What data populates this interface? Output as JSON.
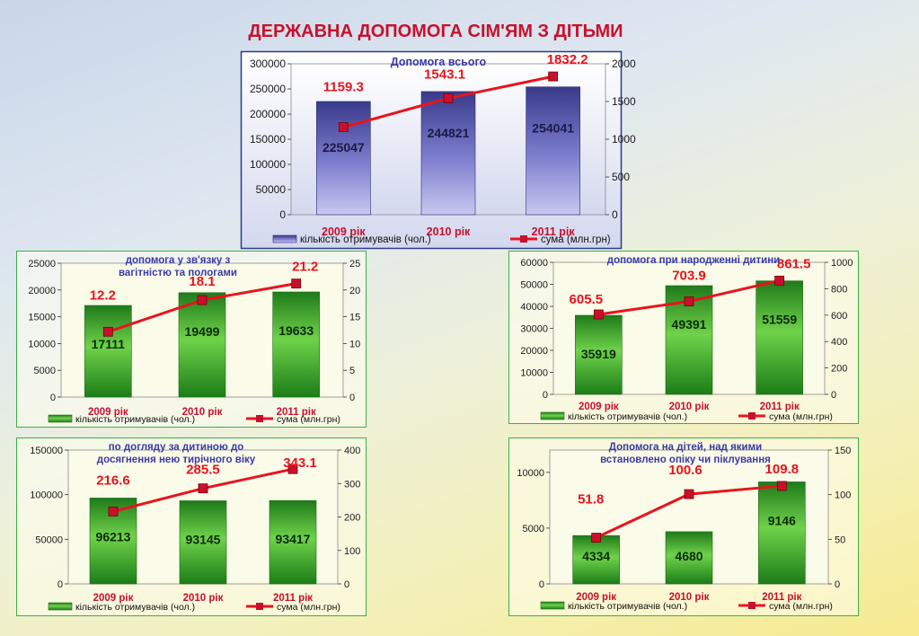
{
  "title": "ДЕРЖАВНА ДОПОМОГА СІМ'ЯМ З ДІТЬМИ",
  "colors": {
    "line": "#e8141e",
    "marker": "#c8102e",
    "value_text": "#e8141e",
    "title_text": "#3a3aa8",
    "green_bar": "#2e9e24",
    "blue_bar": "#4a4aa0",
    "border_green": "#3cb043",
    "border_blue": "#2b3a8c"
  },
  "chart_data": [
    {
      "type": "bar",
      "style": "blue",
      "title": "Допомога всього",
      "categories": [
        "2009 рік",
        "2010 рік",
        "2011 рік"
      ],
      "series": [
        {
          "name": "кількість отримувачів  (чол.)",
          "type": "bar",
          "axis": "left",
          "values": [
            225047,
            244821,
            254041
          ]
        },
        {
          "name": "сума (млн.грн)",
          "type": "line",
          "axis": "right",
          "values": [
            1159.3,
            1543.1,
            1832.2
          ]
        }
      ],
      "ylim_left": [
        0,
        300000
      ],
      "yticks_left": [
        0,
        50000,
        100000,
        150000,
        200000,
        250000,
        300000
      ],
      "ylim_right": [
        0,
        2000
      ],
      "yticks_right": [
        0,
        500,
        1000,
        1500,
        2000
      ],
      "value_labels_bar": [
        "225047",
        "244821",
        "254041"
      ],
      "value_labels_line": [
        "1159.3",
        "1543.1",
        "1832.2"
      ],
      "legend": "bottom"
    },
    {
      "type": "bar",
      "style": "green",
      "title": "допомога  у  зв'язку з вагітністю та пологами",
      "categories": [
        "2009 рік",
        "2010 рік",
        "2011 рік"
      ],
      "series": [
        {
          "name": "кількість отримувачів  (чол.)",
          "type": "bar",
          "axis": "left",
          "values": [
            17111,
            19499,
            19633
          ]
        },
        {
          "name": "сума (млн.грн)",
          "type": "line",
          "axis": "right",
          "values": [
            12.2,
            18.1,
            21.2
          ]
        }
      ],
      "ylim_left": [
        0,
        25000
      ],
      "yticks_left": [
        0,
        5000,
        10000,
        15000,
        20000,
        25000
      ],
      "ylim_right": [
        0,
        25
      ],
      "yticks_right": [
        0,
        5,
        10,
        15,
        20,
        25
      ],
      "value_labels_bar": [
        "17111",
        "19499",
        "19633"
      ],
      "value_labels_line": [
        "12.2",
        "18.1",
        "21.2"
      ],
      "legend": "bottom"
    },
    {
      "type": "bar",
      "style": "green",
      "title": "допомога  при  народженні дитини",
      "categories": [
        "2009 рік",
        "2010 рік",
        "2011 рік"
      ],
      "series": [
        {
          "name": "кількість отримувачів  (чол.)",
          "type": "bar",
          "axis": "left",
          "values": [
            35919,
            49391,
            51559
          ]
        },
        {
          "name": "сума (млн.грн)",
          "type": "line",
          "axis": "right",
          "values": [
            605.5,
            703.9,
            861.5
          ]
        }
      ],
      "ylim_left": [
        0,
        60000
      ],
      "yticks_left": [
        0,
        10000,
        20000,
        30000,
        40000,
        50000,
        60000
      ],
      "ylim_right": [
        0,
        1000
      ],
      "yticks_right": [
        0,
        200,
        400,
        600,
        800,
        1000
      ],
      "value_labels_bar": [
        "35919",
        "49391",
        "51559"
      ],
      "value_labels_line": [
        "605.5",
        "703.9",
        "861.5"
      ],
      "legend": "bottom"
    },
    {
      "type": "bar",
      "style": "green",
      "title": "по догляду  за дитиною до досягнення нею тирічного віку",
      "categories": [
        "2009 рік",
        "2010 рік",
        "2011 рік"
      ],
      "series": [
        {
          "name": "кількість отримувачів  (чол.)",
          "type": "bar",
          "axis": "left",
          "values": [
            96213,
            93145,
            93417
          ]
        },
        {
          "name": "сума (млн.грн)",
          "type": "line",
          "axis": "right",
          "values": [
            216.6,
            285.5,
            343.1
          ]
        }
      ],
      "ylim_left": [
        0,
        150000
      ],
      "yticks_left": [
        0,
        50000,
        100000,
        150000
      ],
      "ylim_right": [
        0,
        400
      ],
      "yticks_right": [
        0,
        100,
        200,
        300,
        400
      ],
      "value_labels_bar": [
        "96213",
        "93145",
        "93417"
      ],
      "value_labels_line": [
        "216.6",
        "285.5",
        "343.1"
      ],
      "legend": "bottom"
    },
    {
      "type": "bar",
      "style": "green",
      "title": "Допомога  на дітей, над якими встановлено опіку чи піклування",
      "categories": [
        "2009 рік",
        "2010 рік",
        "2011 рік"
      ],
      "series": [
        {
          "name": "кількість отримувачів  (чол.)",
          "type": "bar",
          "axis": "left",
          "values": [
            4334,
            4680,
            9146
          ]
        },
        {
          "name": "сума (млн.грн)",
          "type": "line",
          "axis": "right",
          "values": [
            51.8,
            100.6,
            109.8
          ]
        }
      ],
      "ylim_left": [
        0,
        12000
      ],
      "yticks_left": [
        0,
        5000,
        10000
      ],
      "ylim_right": [
        0,
        150
      ],
      "yticks_right": [
        0,
        50,
        100,
        150
      ],
      "value_labels_bar": [
        "4334",
        "4680",
        "9146"
      ],
      "value_labels_line": [
        "51.8",
        "100.6",
        "109.8"
      ],
      "legend": "bottom"
    }
  ]
}
